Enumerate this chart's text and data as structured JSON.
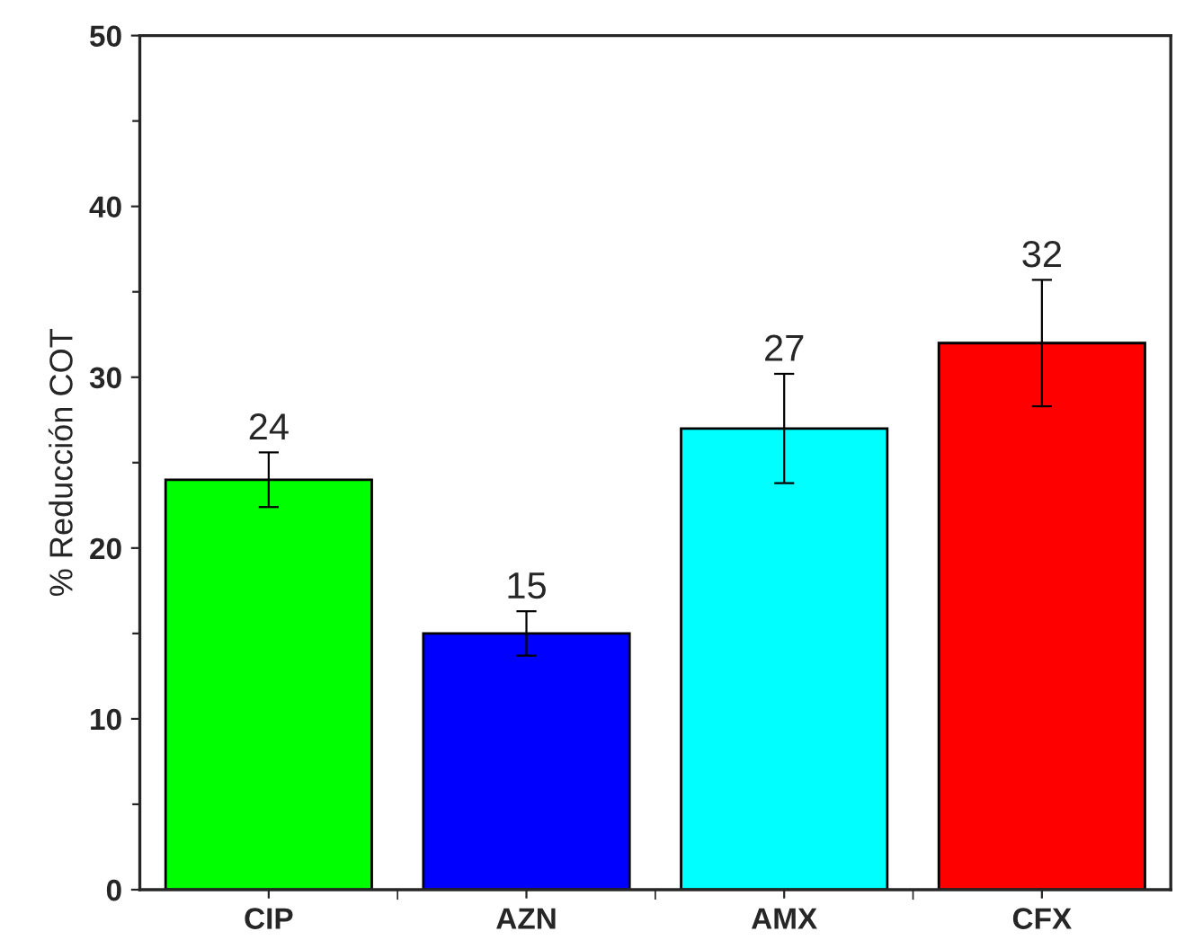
{
  "chart_data": {
    "type": "bar",
    "ylabel": "% Reducción COT",
    "categories": [
      "CIP",
      "AZN",
      "AMX",
      "CFX"
    ],
    "values": [
      24,
      15,
      27,
      32
    ],
    "colors": [
      "#00ff00",
      "#0000ff",
      "#00ffff",
      "#ff0000"
    ],
    "errors": [
      1.6,
      1.3,
      3.2,
      3.7
    ],
    "data_labels": true,
    "ylim": [
      0,
      50
    ],
    "yticks": [
      0,
      {
        "value": 5,
        "label": null
      },
      10,
      {
        "value": 15,
        "label": null
      },
      20,
      {
        "value": 25,
        "label": null
      },
      30,
      {
        "value": 35,
        "label": null
      },
      40,
      {
        "value": 45,
        "label": null
      },
      50
    ],
    "grid": false,
    "legend": false
  }
}
